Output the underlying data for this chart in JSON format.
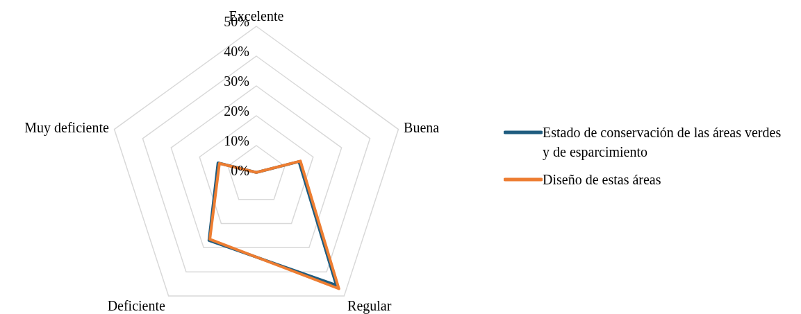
{
  "chart_data": {
    "type": "radar",
    "categories": [
      "Excelente",
      "Buena",
      "Regular",
      "Deficiente",
      "Muy deficiente"
    ],
    "series": [
      {
        "name": "Estado de conservación de las áreas verdes y de esparcimiento",
        "color": "#1f5c7f",
        "values": [
          1,
          15,
          45.5,
          27,
          13.5
        ]
      },
      {
        "name": "Diseño de estas áreas",
        "color": "#ed7d31",
        "values": [
          1,
          15.5,
          47,
          26.5,
          13
        ]
      }
    ],
    "ylim": [
      0,
      50
    ],
    "yticks": [
      {
        "value": 0,
        "label": "0%"
      },
      {
        "value": 10,
        "label": "10%"
      },
      {
        "value": 20,
        "label": "20%"
      },
      {
        "value": 30,
        "label": "30%"
      },
      {
        "value": 40,
        "label": "40%"
      },
      {
        "value": 50,
        "label": "50%"
      }
    ],
    "grid": true,
    "legend": "right",
    "marker": "none"
  }
}
